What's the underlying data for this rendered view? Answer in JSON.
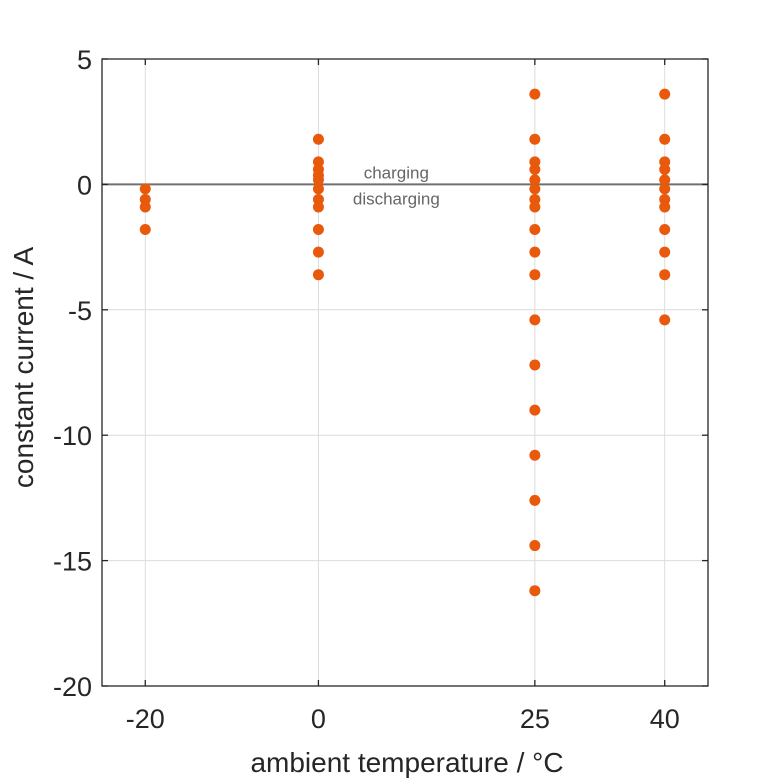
{
  "chart_data": {
    "type": "scatter",
    "title": "",
    "xlabel": "ambient temperature / °C",
    "ylabel": "constant current / A",
    "xlim": [
      -25,
      45
    ],
    "ylim": [
      -20,
      5
    ],
    "xticks": [
      -20,
      0,
      25,
      40
    ],
    "xtick_labels": [
      "-20",
      "0",
      "25",
      "40"
    ],
    "yticks": [
      5,
      0,
      -5,
      -10,
      -15,
      -20
    ],
    "ytick_labels": [
      "5",
      "0",
      "-5",
      "-10",
      "-15",
      "-20"
    ],
    "grid": true,
    "zero_line": true,
    "annotations": {
      "above_zero": "charging",
      "below_zero": "discharging"
    },
    "marker_color": "#E8590C",
    "zero_line_color": "#707070",
    "grid_color": "#DCDCDC",
    "series": [
      {
        "name": "-20 °C",
        "x": -20,
        "values": [
          -0.18,
          -0.6,
          -0.9,
          -1.8
        ]
      },
      {
        "name": "0 °C",
        "x": 0,
        "values": [
          1.8,
          0.9,
          0.6,
          0.36,
          0.18,
          -0.18,
          -0.6,
          -0.9,
          -1.8,
          -2.7,
          -3.6
        ]
      },
      {
        "name": "25 °C",
        "x": 25,
        "values": [
          3.6,
          1.8,
          0.9,
          0.6,
          0.18,
          -0.18,
          -0.6,
          -0.9,
          -1.8,
          -2.7,
          -3.6,
          -5.4,
          -7.2,
          -9.0,
          -10.8,
          -12.6,
          -14.4,
          -16.2
        ]
      },
      {
        "name": "40 °C",
        "x": 40,
        "values": [
          3.6,
          1.8,
          0.9,
          0.6,
          0.18,
          -0.18,
          -0.6,
          -0.9,
          -1.8,
          -2.7,
          -3.6,
          -5.4
        ]
      }
    ]
  }
}
